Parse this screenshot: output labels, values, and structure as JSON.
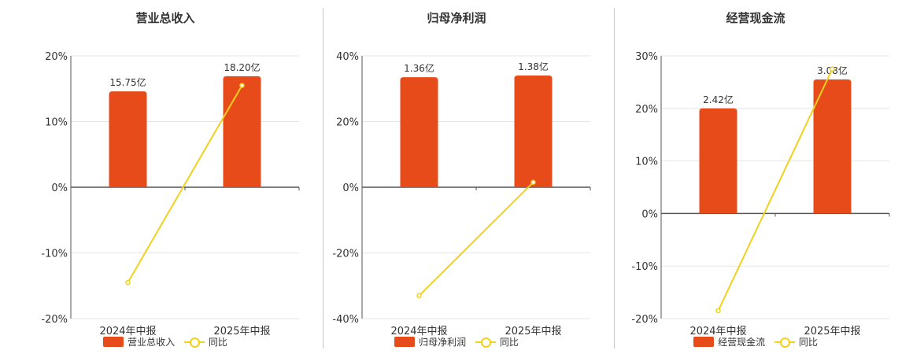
{
  "colors": {
    "bar": "#e84b1a",
    "line": "#f0d21e",
    "grid": "#e6e6e6",
    "axis": "#555555"
  },
  "chart_data": [
    {
      "type": "bar+line",
      "title": "营业总收入",
      "categories": [
        "2024年中报",
        "2025年中报"
      ],
      "series": [
        {
          "name": "营业总收入",
          "type": "bar",
          "values": [
            15.75,
            18.2
          ],
          "labels": [
            "15.75亿",
            "18.20亿"
          ]
        },
        {
          "name": "同比",
          "type": "line",
          "values": [
            -14.5,
            15.5
          ]
        }
      ],
      "ylim": [
        -20,
        20
      ],
      "yticks": [
        20,
        10,
        0,
        -10,
        -20
      ],
      "ytick_labels": [
        "20%",
        "10%",
        "0%",
        "-10%",
        "-20%"
      ],
      "bar_values_in_percent_scale": [
        14.6,
        16.9
      ]
    },
    {
      "type": "bar+line",
      "title": "归母净利润",
      "categories": [
        "2024年中报",
        "2025年中报"
      ],
      "series": [
        {
          "name": "归母净利润",
          "type": "bar",
          "values": [
            1.36,
            1.38
          ],
          "labels": [
            "1.36亿",
            "1.38亿"
          ]
        },
        {
          "name": "同比",
          "type": "line",
          "values": [
            -33.0,
            1.5
          ]
        }
      ],
      "ylim": [
        -40,
        40
      ],
      "yticks": [
        40,
        20,
        0,
        -20,
        -40
      ],
      "ytick_labels": [
        "40%",
        "20%",
        "0%",
        "-20%",
        "-40%"
      ],
      "bar_values_in_percent_scale": [
        33.5,
        34.0
      ]
    },
    {
      "type": "bar+line",
      "title": "经营现金流",
      "categories": [
        "2024年中报",
        "2025年中报"
      ],
      "series": [
        {
          "name": "经营现金流",
          "type": "bar",
          "values": [
            2.42,
            3.08
          ],
          "labels": [
            "2.42亿",
            "3.08亿"
          ]
        },
        {
          "name": "同比",
          "type": "line",
          "values": [
            -18.5,
            27.5
          ]
        }
      ],
      "ylim": [
        -20,
        30
      ],
      "yticks": [
        30,
        20,
        10,
        0,
        -10,
        -20
      ],
      "ytick_labels": [
        "30%",
        "20%",
        "10%",
        "0%",
        "-10%",
        "-20%"
      ],
      "bar_values_in_percent_scale": [
        20.0,
        25.5
      ]
    }
  ]
}
